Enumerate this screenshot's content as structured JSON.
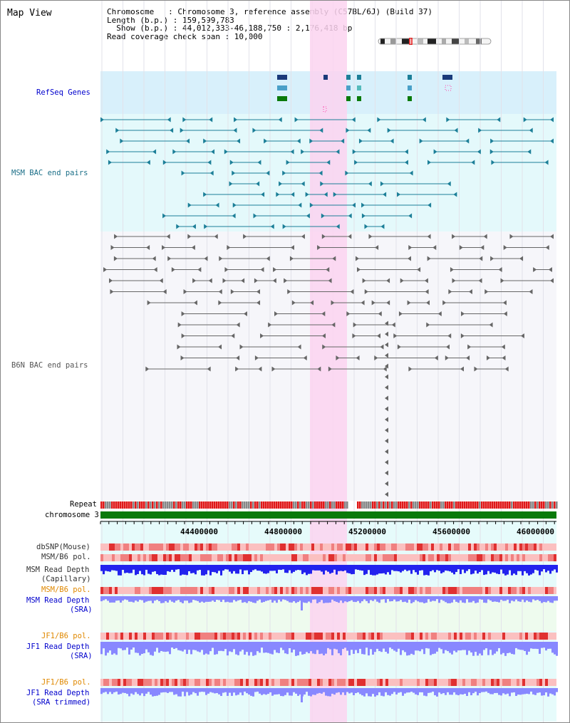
{
  "page": {
    "title": "Map View"
  },
  "info": {
    "line1": "Chromosome   : Chromosome 3, reference assembly (C57BL/6J) (Build 37)",
    "line2": "Length (b.p.) : 159,599,783",
    "line3": "  Show (b.p.) : 44,012,333-46,188,750 : 2,176,418 bp",
    "line4": "Read coverage check span : 10,000"
  },
  "tracks": {
    "refseq": "RefSeq Genes",
    "msm_bac": "MSM BAC end pairs",
    "b6n_bac": "B6N BAC end pairs",
    "repeat": "Repeat",
    "chromosome": "chromosome 3",
    "dbsnp": "dbSNP(Mouse)",
    "msm_b6_pol_cap": "MSM/B6 pol.",
    "msm_depth_cap_1": "MSM Read Depth",
    "msm_depth_cap_2": "(Capillary)",
    "msm_b6_pol_sra": "MSM/B6 pol.",
    "msm_depth_sra_1": "MSM Read Depth",
    "msm_depth_sra_2": "(SRA)",
    "jf1_b6_pol_1": "JF1/B6 pol.",
    "jf1_depth_sra_1": "JF1 Read Depth",
    "jf1_depth_sra_2": "(SRA)",
    "jf1_b6_pol_2": "JF1/B6 pol.",
    "jf1_depth_trim_1": "JF1 Read Depth",
    "jf1_depth_trim_2": "(SRA trimmed)"
  },
  "axis": {
    "ticks": [
      "44400000",
      "44800000",
      "45200000",
      "45600000",
      "46000000"
    ]
  },
  "colors": {
    "refseq_bg": "#d8f0fb",
    "msm_bg": "#e4f9fb",
    "msm_feature": "#1c7f98",
    "b6n_bg": "#f6f6fa",
    "b6n_feature": "#555555",
    "highlight": "#fbd3f0",
    "repeat": "#e01818",
    "chromosome": "#0a7a0a",
    "depth_blue": "#2222ee",
    "depth_light": "#8888ff",
    "label_blue": "#0000cc",
    "label_orange": "#e08800"
  }
}
